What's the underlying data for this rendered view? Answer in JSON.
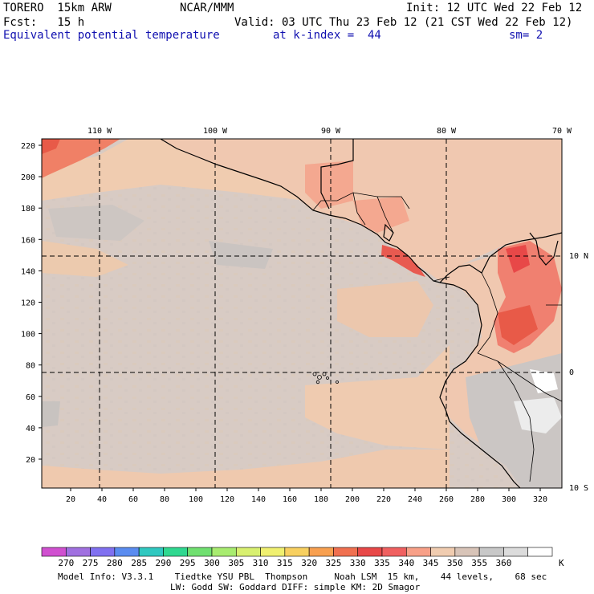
{
  "header": {
    "model": "TORERO  15km ARW",
    "org": "NCAR/MMM",
    "init": "Init: 12 UTC Wed 22 Feb 12",
    "fcst": "Fcst:   15 h",
    "valid": "Valid: 03 UTC Thu 23 Feb 12 (21 CST Wed 22 Feb 12)",
    "field": "Equivalent potential temperature",
    "level": "at k-index =  44",
    "smooth": "sm= 2"
  },
  "axes": {
    "top_lon_labels": [
      "110 W",
      "100 W",
      "90 W",
      "80 W",
      "70 W"
    ],
    "right_lat_labels": [
      "10 N",
      "0",
      "10 S"
    ],
    "left_y_ticks": [
      "220",
      "200",
      "180",
      "160",
      "140",
      "120",
      "100",
      "80",
      "60",
      "40",
      "20"
    ],
    "bottom_x_ticks": [
      "20",
      "40",
      "60",
      "80",
      "100",
      "120",
      "140",
      "160",
      "180",
      "200",
      "220",
      "240",
      "260",
      "280",
      "300",
      "320"
    ]
  },
  "colorbar": {
    "labels": [
      "270",
      "275",
      "280",
      "285",
      "290",
      "295",
      "300",
      "305",
      "310",
      "315",
      "320",
      "325",
      "330",
      "335",
      "340",
      "345",
      "350",
      "355",
      "360"
    ],
    "unit": "K",
    "colors": [
      "#d050d0",
      "#a070e0",
      "#8070f0",
      "#5a8cf0",
      "#30c8c0",
      "#30d890",
      "#70e070",
      "#a8ec70",
      "#d8f070",
      "#f0f070",
      "#f8d060",
      "#f8a050",
      "#f07050",
      "#e84848",
      "#f06060",
      "#f8a088",
      "#f0ccb0",
      "#d8c4b8",
      "#c8c8c8",
      "#dcdcdc",
      "#ffffff"
    ]
  },
  "footer": {
    "line1": "Model Info: V3.3.1    Tiedtke YSU PBL  Thompson     Noah LSM  15 km,    44 levels,    68 sec",
    "line2": "LW: Godd SW: Goddard DIFF: simple KM: 2D Smagor"
  }
}
